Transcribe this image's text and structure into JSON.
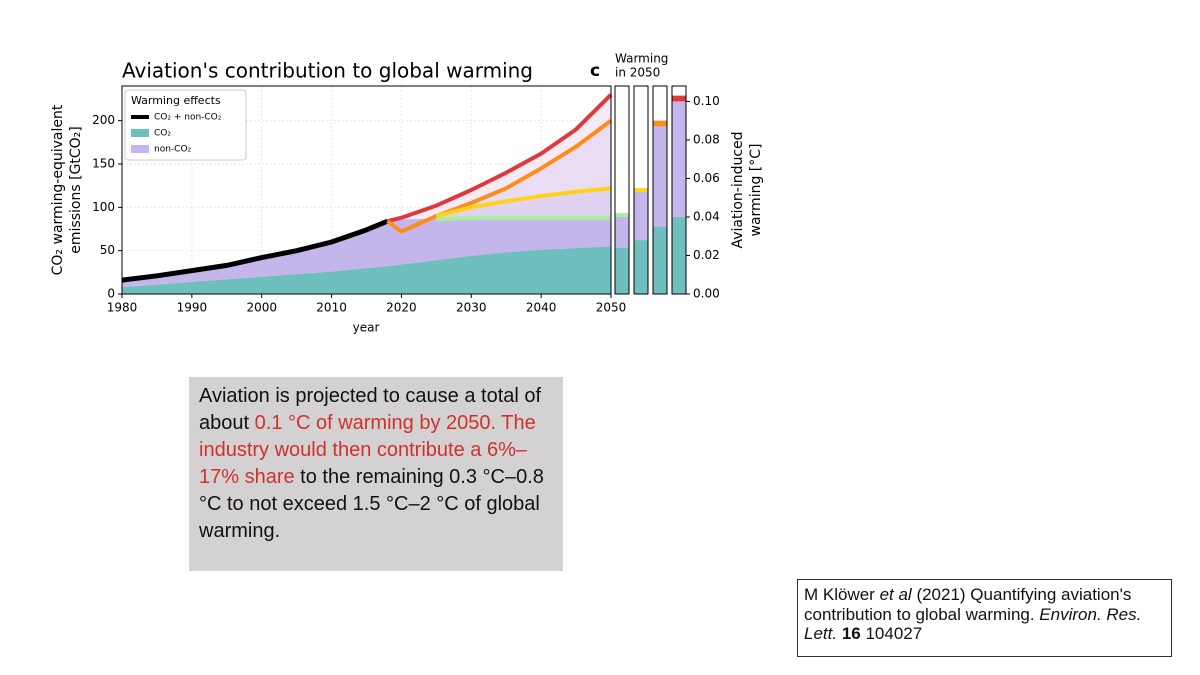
{
  "chart_data": [
    {
      "type": "area",
      "title": "Aviation's contribution to global warming",
      "y_label": [
        "CO₂ warming-equivalent",
        "emissions [GtCO₂]"
      ],
      "x_label": "year",
      "legend_title": "Warming effects",
      "grid": true,
      "x": [
        1980,
        1985,
        1990,
        1995,
        2000,
        2005,
        2010,
        2015,
        2018,
        2020,
        2025,
        2030,
        2035,
        2040,
        2045,
        2050
      ],
      "xlim": [
        1980,
        2050
      ],
      "xticks": [
        1980,
        1990,
        2000,
        2010,
        2020,
        2030,
        2040,
        2050
      ],
      "ylim": [
        0,
        240
      ],
      "yticks": [
        0,
        50,
        100,
        150,
        200
      ],
      "series": [
        {
          "name": "CO₂ + non-CO₂",
          "style": "line",
          "color": "#000000",
          "values": [
            16,
            21,
            27,
            33,
            42,
            50,
            60,
            74,
            84,
            null,
            null,
            null,
            null,
            null,
            null,
            null
          ]
        },
        {
          "name": "CO₂",
          "style": "area",
          "color": "#6fbfbe",
          "values": [
            8,
            11,
            14,
            17,
            20,
            23,
            26,
            30,
            32,
            34,
            39,
            44,
            48,
            51,
            53,
            55
          ]
        },
        {
          "name": "non-CO₂",
          "style": "area",
          "color": "#c4b5ea",
          "values": [
            8,
            10,
            13,
            16,
            22,
            27,
            34,
            44,
            52,
            52,
            48,
            44,
            40,
            37,
            35,
            33
          ]
        },
        {
          "style": "line",
          "color": "#e0393b",
          "fill": "#f0dcee",
          "values": [
            null,
            null,
            null,
            null,
            null,
            null,
            null,
            null,
            84,
            88,
            102,
            120,
            140,
            162,
            190,
            230
          ]
        },
        {
          "style": "line",
          "color": "#ff8c1a",
          "fill": "#e2d3f2",
          "values": [
            null,
            null,
            null,
            null,
            null,
            null,
            null,
            null,
            84,
            72,
            90,
            105,
            122,
            145,
            170,
            200
          ]
        },
        {
          "style": "line",
          "color": "#ffd21a",
          "fill": "#d9cbf0",
          "values": [
            null,
            null,
            null,
            null,
            null,
            null,
            null,
            null,
            null,
            null,
            90,
            100,
            107,
            113,
            118,
            122
          ]
        },
        {
          "style": "line",
          "color": "#a6ef9f",
          "fill": "#cfc2ee",
          "values": [
            null,
            null,
            null,
            null,
            null,
            null,
            null,
            null,
            null,
            null,
            86,
            88,
            88,
            88,
            88,
            88
          ]
        }
      ]
    },
    {
      "type": "stacked_bar",
      "panel_label": "c",
      "title": [
        "Warming",
        "in 2050"
      ],
      "y_label": [
        "Aviation-induced",
        "warming [°C]"
      ],
      "categories": [
        null,
        null,
        null,
        null
      ],
      "ylim": [
        0,
        0.108
      ],
      "yticks": [
        {
          "value": 0,
          "label": "0.00"
        },
        {
          "value": 0.02,
          "label": "0.02"
        },
        {
          "value": 0.04,
          "label": "0.04"
        },
        {
          "value": 0.06,
          "label": "0.06"
        },
        {
          "value": 0.08,
          "label": "0.08"
        },
        {
          "value": 0.1,
          "label": "0.10"
        }
      ],
      "series": [
        {
          "color": "#6fbfbe",
          "values": [
            0.024,
            0.028,
            0.035,
            0.04
          ]
        },
        {
          "color": "#c4b5ea",
          "values": [
            0.016,
            0.025,
            0.052,
            0.06
          ]
        },
        {
          "colors": [
            "#a6ef9f",
            "#ffd21a",
            "#ff8c1a",
            "#e0393b"
          ],
          "values": [
            0.002,
            0.002,
            0.003,
            0.003
          ]
        }
      ]
    }
  ],
  "text_box": {
    "segments": [
      {
        "text": "Aviation is projected to cause a total of about ",
        "color": "#111111"
      },
      {
        "text": "0.1 °C of warming by 2050. The industry would then contribute a 6%–17% share",
        "color": "#d0312d"
      },
      {
        "text": " to the remaining 0.3 °C–0.8 °C to not exceed 1.5 °C–2 °C of global warming.",
        "color": "#111111"
      }
    ]
  },
  "citation": {
    "segments": [
      {
        "text": "M Klöwer ",
        "style": "normal"
      },
      {
        "text": "et al",
        "style": "italic"
      },
      {
        "text": " (2021) Quantifying aviation's contribution to global warming. ",
        "style": "normal"
      },
      {
        "text": "Environ. Res. Lett.",
        "style": "italic"
      },
      {
        "text": " ",
        "style": "normal"
      },
      {
        "text": "16",
        "style": "bold"
      },
      {
        "text": " 104027",
        "style": "normal"
      }
    ]
  }
}
